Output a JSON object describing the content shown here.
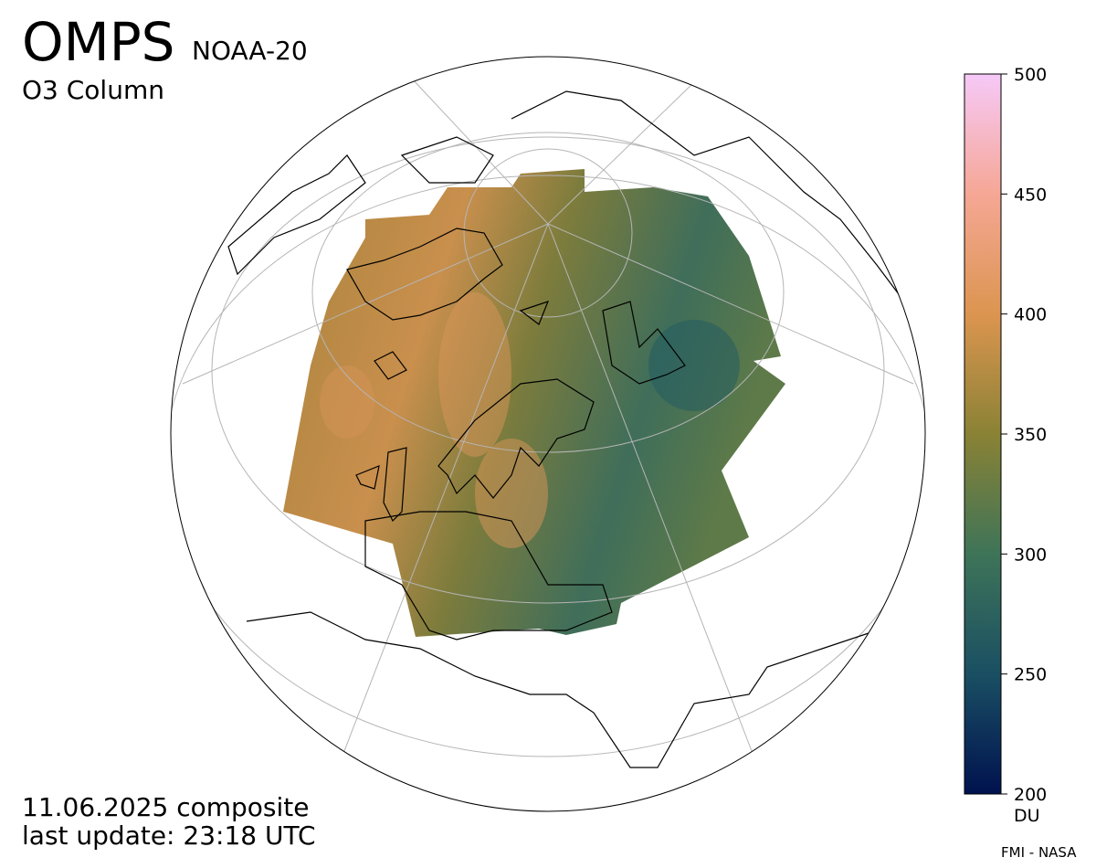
{
  "header": {
    "title": "OMPS",
    "satellite": "NOAA-20",
    "product": "O3 Column"
  },
  "footer": {
    "date": "11.06.2025 composite",
    "update": "last update: 23:18 UTC",
    "credit": "FMI - NASA"
  },
  "colorbar": {
    "lim": [
      200,
      500
    ],
    "ticks": [
      200,
      250,
      300,
      350,
      400,
      450,
      500
    ],
    "unit": "DU",
    "colors": [
      "#00124f",
      "#1a4f63",
      "#3e7458",
      "#8a8235",
      "#dc9550",
      "#f6a795",
      "#f6c9f8"
    ]
  }
}
